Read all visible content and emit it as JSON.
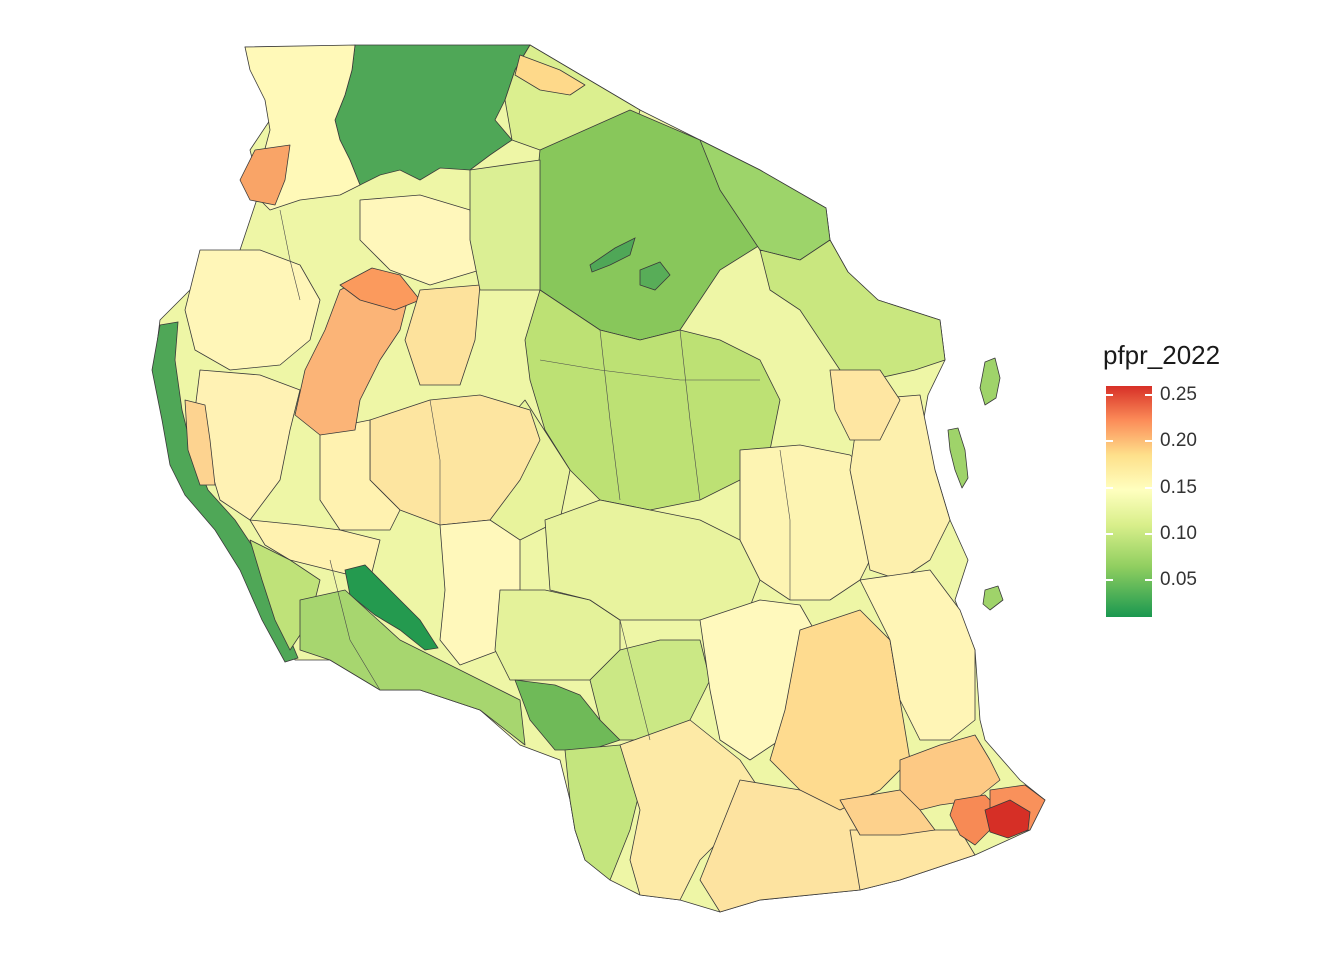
{
  "legend": {
    "title": "pfpr_2022",
    "ticks": [
      "0.25",
      "0.20",
      "0.15",
      "0.10",
      "0.05"
    ],
    "scale_min": 0.01,
    "scale_max": 0.26,
    "colors": [
      "#1a9850",
      "#91cf60",
      "#d9ef8b",
      "#ffffbf",
      "#fee08b",
      "#fc8d59",
      "#d73027"
    ]
  },
  "map": {
    "country": "Tanzania",
    "variable": "pfpr_2022",
    "lake_color": "#4fa757"
  }
}
